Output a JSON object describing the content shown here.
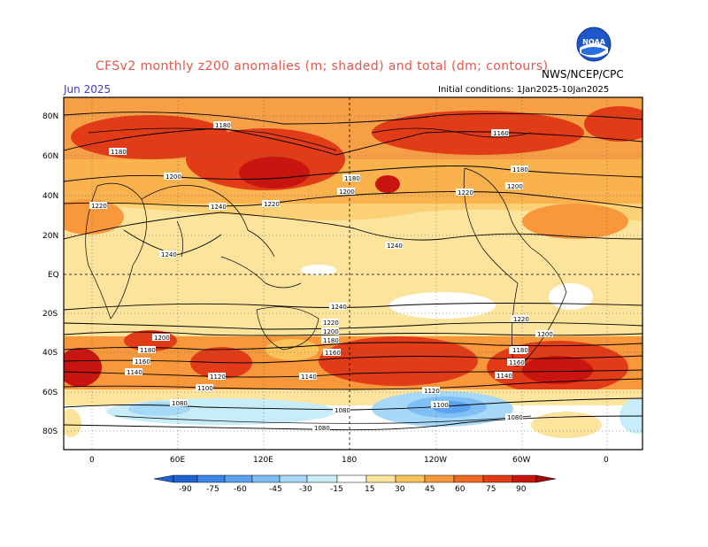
{
  "header": {
    "title": "CFSv2 monthly z200 anomalies (m; shaded) and total (dm; contours)",
    "org": "NWS/NCEP/CPC",
    "month": "Jun 2025",
    "init": "Initial conditions: 1Jan2025-10Jan2025",
    "logo_text": "NOAA"
  },
  "axes": {
    "lat_labels": [
      "80N",
      "60N",
      "40N",
      "20N",
      "EQ",
      "20S",
      "40S",
      "60S",
      "80S"
    ],
    "lon_labels": [
      "0",
      "60E",
      "120E",
      "180",
      "120W",
      "60W",
      "0"
    ]
  },
  "contour_labels": [
    "1180",
    "1180",
    "1160",
    "1200",
    "1240",
    "1220",
    "1220",
    "1200",
    "1180",
    "1220",
    "1240",
    "1180",
    "1200",
    "1240",
    "1220",
    "1200",
    "1180",
    "1160",
    "1140",
    "1100",
    "1080",
    "1080",
    "1200",
    "1180",
    "1160",
    "1140",
    "1120",
    "1160",
    "1140",
    "1120",
    "1100",
    "1080",
    "1240",
    "1220",
    "1200",
    "1180",
    "1160",
    "1140",
    "1080"
  ],
  "legend": {
    "ticks": [
      "-90",
      "-75",
      "-60",
      "-45",
      "-30",
      "-15",
      "15",
      "30",
      "45",
      "60",
      "75",
      "90"
    ],
    "colors": [
      "#1e63d6",
      "#3b86e8",
      "#5ba3f0",
      "#80bff5",
      "#a6d8f7",
      "#c8ecf8",
      "#ffffff",
      "#fde49c",
      "#fbc35a",
      "#f8983b",
      "#f06a24",
      "#e23b17",
      "#c8150f",
      "#a00a0a"
    ]
  }
}
